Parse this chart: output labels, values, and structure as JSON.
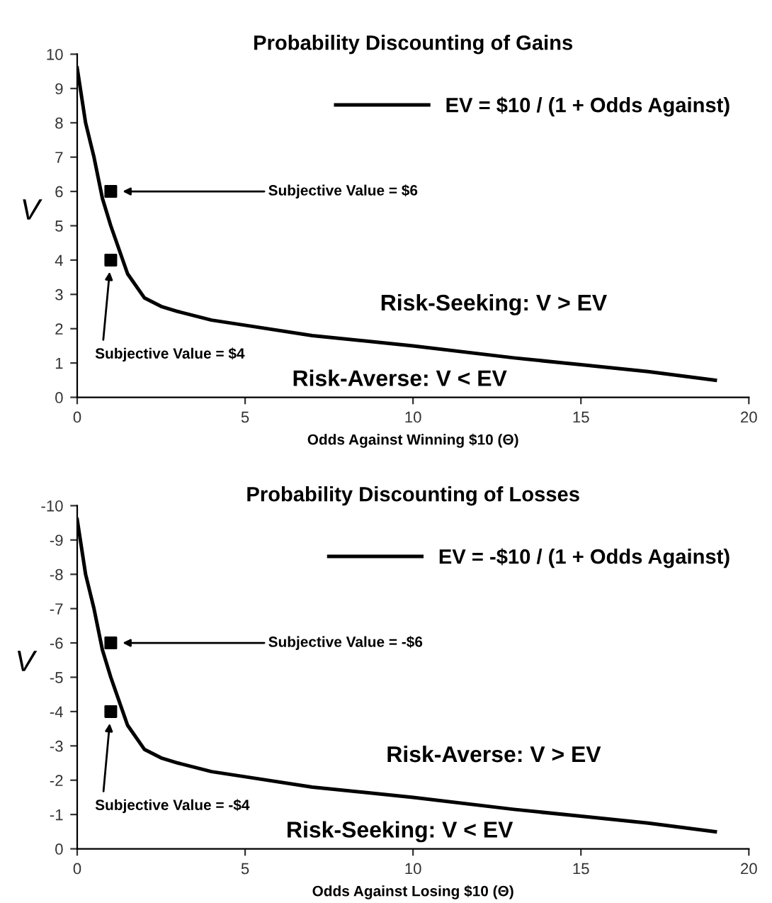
{
  "chart_data": [
    {
      "type": "line",
      "title": "Probability Discounting of Gains",
      "xlabel": "Odds Against Winning $10 (Θ)",
      "ylabel": "V",
      "xlim": [
        0,
        20
      ],
      "ylim": [
        0,
        10
      ],
      "xticks": [
        0,
        5,
        10,
        15,
        20
      ],
      "yticks": [
        0,
        1,
        2,
        3,
        4,
        5,
        6,
        7,
        8,
        9,
        10
      ],
      "grid": false,
      "legend": "top right",
      "series": [
        {
          "name": "EV = $10 / (1 + Odds Against)",
          "color": "#000000",
          "marker": "none",
          "line_style": "solid",
          "x": [
            0,
            0.25,
            0.5,
            0.75,
            1,
            1.5,
            2,
            2.5,
            3,
            4,
            5,
            7,
            10,
            13,
            15,
            17,
            19
          ],
          "values": [
            9.6,
            8,
            7,
            5.8,
            5,
            3.6,
            2.9,
            2.65,
            2.5,
            2.25,
            2.1,
            1.8,
            1.5,
            1.15,
            0.95,
            0.75,
            0.5
          ]
        },
        {
          "type": "scatter",
          "color": "#000000",
          "marker": "square",
          "x": [
            1,
            1
          ],
          "values": [
            6,
            4
          ]
        }
      ],
      "annotations": [
        "Subjective Value = $6",
        "Subjective Value = $4",
        "Risk-Seeking: V > EV",
        "Risk-Averse: V < EV"
      ]
    },
    {
      "type": "line",
      "title": "Probability Discounting of Losses",
      "xlabel": "Odds Against Losing $10 (Θ)",
      "ylabel": "V",
      "xlim": [
        0,
        20
      ],
      "ylim": [
        0,
        -10
      ],
      "xticks": [
        0,
        5,
        10,
        15,
        20
      ],
      "yticks": [
        0,
        -1,
        -2,
        -3,
        -4,
        -5,
        -6,
        -7,
        -8,
        -9,
        -10
      ],
      "grid": false,
      "legend": "top right",
      "series": [
        {
          "name": "EV = -$10 / (1 + Odds Against)",
          "color": "#000000",
          "marker": "none",
          "line_style": "solid",
          "x": [
            0,
            0.25,
            0.5,
            0.75,
            1,
            1.5,
            2,
            2.5,
            3,
            4,
            5,
            7,
            10,
            13,
            15,
            17,
            19
          ],
          "values": [
            -9.6,
            -8,
            -7,
            -5.8,
            -5,
            -3.6,
            -2.9,
            -2.65,
            -2.5,
            -2.25,
            -2.1,
            -1.8,
            -1.5,
            -1.15,
            -0.95,
            -0.75,
            -0.5
          ]
        },
        {
          "type": "scatter",
          "color": "#000000",
          "marker": "square",
          "x": [
            1,
            1
          ],
          "values": [
            -6,
            -4
          ]
        }
      ],
      "annotations": [
        "Subjective Value = -$6",
        "Subjective Value = -$4",
        "Risk-Averse: V > EV",
        "Risk-Seeking: V < EV"
      ]
    }
  ]
}
